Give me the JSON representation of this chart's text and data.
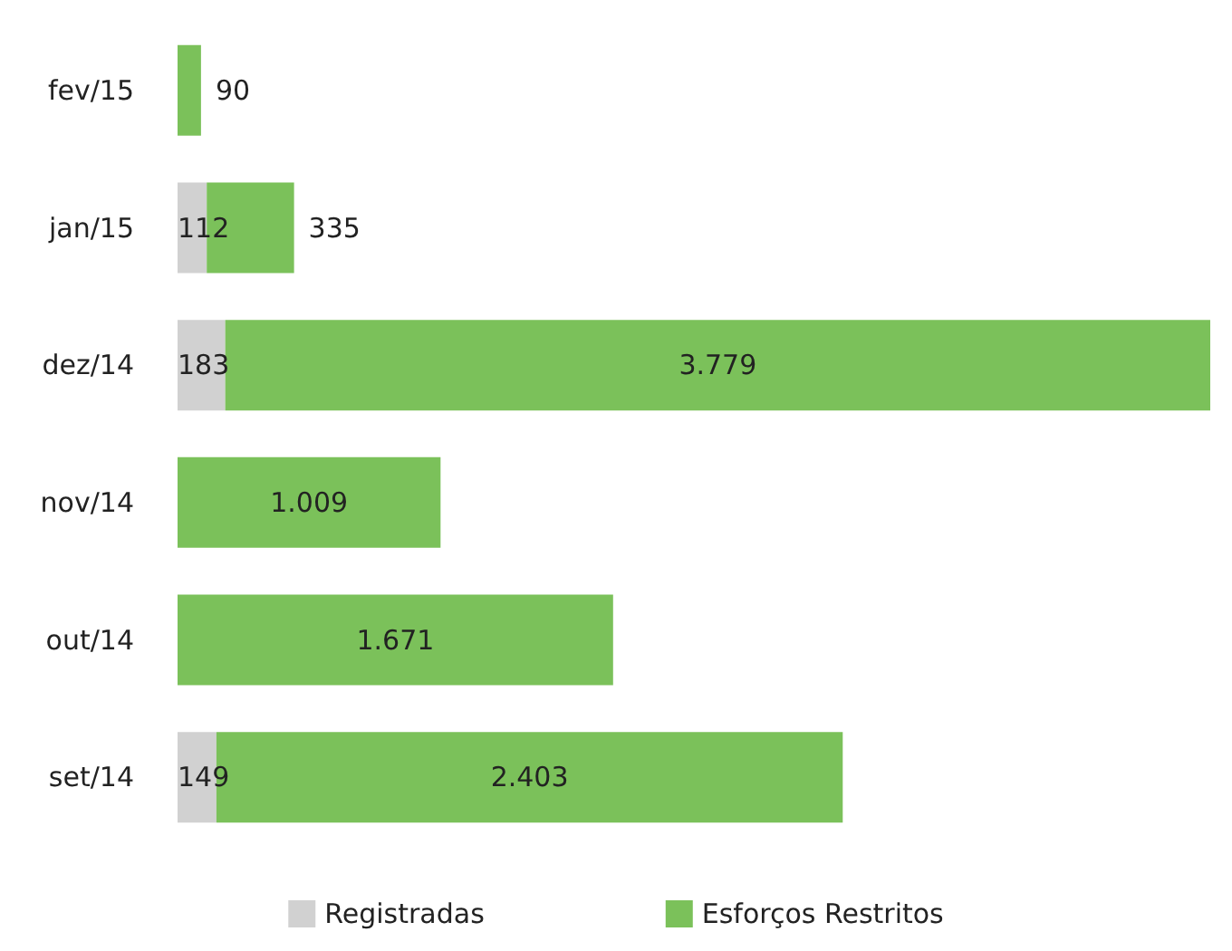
{
  "chart_data": {
    "type": "bar",
    "orientation": "horizontal",
    "stacked": true,
    "categories": [
      "fev/15",
      "jan/15",
      "dez/14",
      "nov/14",
      "out/14",
      "set/14"
    ],
    "series": [
      {
        "name": "Registradas",
        "color": "#d1d1d1",
        "values": [
          null,
          112,
          183,
          null,
          null,
          149
        ],
        "value_labels": [
          null,
          "112",
          "183",
          null,
          null,
          "149"
        ]
      },
      {
        "name": "Esforços Restritos",
        "color": "#7bc15a",
        "values": [
          90,
          335,
          3779,
          1009,
          1671,
          2403
        ],
        "value_labels": [
          "90",
          "335",
          "3.779",
          "1.009",
          "1.671",
          "2.403"
        ]
      }
    ],
    "legend": "bottom"
  }
}
